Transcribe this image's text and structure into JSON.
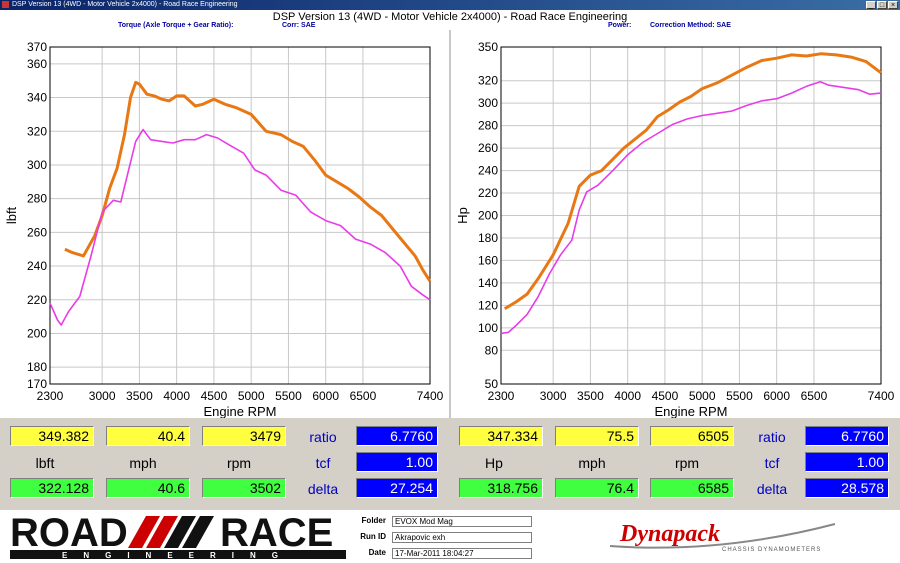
{
  "window": {
    "title": "DSP Version 13 (4WD - Motor Vehicle 2x4000) - Road Race Engineering"
  },
  "header": {
    "main_title": "DSP Version 13 (4WD - Motor Vehicle 2x4000) - Road Race Engineering",
    "left_sub": "Torque (Axle Torque + Gear Ratio):",
    "left_corr": "Corr: SAE",
    "right_sub": "Power:",
    "right_corr": "Correction Method: SAE"
  },
  "colors": {
    "run1": "#e87814",
    "run2": "#e83ce8",
    "panel_yellow": "#ffff40",
    "panel_green": "#40ff40",
    "panel_blue": "#0000ff",
    "label_blue": "#0000c0"
  },
  "chart_data": [
    {
      "type": "line",
      "ylabel": "lbft",
      "xlabel": "Engine RPM",
      "xticks": [
        "2300",
        "3000",
        "3500",
        "4000",
        "4500",
        "5000",
        "5500",
        "6000",
        "6500",
        "7400"
      ],
      "xtick_values": [
        2300,
        3000,
        3500,
        4000,
        4500,
        5000,
        5500,
        6000,
        6500,
        7400
      ],
      "yticks": [
        "370",
        "360",
        "340",
        "320",
        "300",
        "280",
        "260",
        "240",
        "220",
        "200",
        "180",
        "170"
      ],
      "ytick_values": [
        370,
        360,
        340,
        320,
        300,
        280,
        260,
        240,
        220,
        200,
        180,
        170
      ],
      "xlim": [
        2300,
        7400
      ],
      "ylim": [
        170,
        370
      ],
      "grid": true,
      "series": [
        {
          "color": "#e87814",
          "points": [
            [
              2500,
              250
            ],
            [
              2600,
              248
            ],
            [
              2750,
              246
            ],
            [
              2900,
              258
            ],
            [
              3000,
              270
            ],
            [
              3100,
              286
            ],
            [
              3200,
              298
            ],
            [
              3300,
              318
            ],
            [
              3380,
              340
            ],
            [
              3450,
              349
            ],
            [
              3500,
              348
            ],
            [
              3600,
              342
            ],
            [
              3700,
              341
            ],
            [
              3800,
              339
            ],
            [
              3900,
              338
            ],
            [
              4000,
              341
            ],
            [
              4100,
              341
            ],
            [
              4250,
              335
            ],
            [
              4350,
              336
            ],
            [
              4500,
              339
            ],
            [
              4650,
              336
            ],
            [
              4800,
              334
            ],
            [
              5000,
              330
            ],
            [
              5200,
              320
            ],
            [
              5400,
              318
            ],
            [
              5550,
              314
            ],
            [
              5700,
              311
            ],
            [
              5850,
              303
            ],
            [
              6000,
              294
            ],
            [
              6150,
              290
            ],
            [
              6300,
              286
            ],
            [
              6450,
              281
            ],
            [
              6600,
              275
            ],
            [
              6750,
              270
            ],
            [
              6900,
              262
            ],
            [
              7050,
              254
            ],
            [
              7200,
              246
            ],
            [
              7300,
              238
            ],
            [
              7400,
              231
            ]
          ]
        },
        {
          "color": "#e83ce8",
          "points": [
            [
              2300,
              218
            ],
            [
              2400,
              208
            ],
            [
              2450,
              205
            ],
            [
              2550,
              213
            ],
            [
              2700,
              222
            ],
            [
              2850,
              246
            ],
            [
              3000,
              272
            ],
            [
              3150,
              279
            ],
            [
              3250,
              278
            ],
            [
              3350,
              296
            ],
            [
              3450,
              314
            ],
            [
              3550,
              321
            ],
            [
              3650,
              315
            ],
            [
              3800,
              314
            ],
            [
              3950,
              313
            ],
            [
              4100,
              315
            ],
            [
              4250,
              315
            ],
            [
              4400,
              318
            ],
            [
              4550,
              316
            ],
            [
              4700,
              312
            ],
            [
              4900,
              307
            ],
            [
              5050,
              297
            ],
            [
              5200,
              294
            ],
            [
              5400,
              285
            ],
            [
              5600,
              282
            ],
            [
              5800,
              272
            ],
            [
              6000,
              267
            ],
            [
              6200,
              264
            ],
            [
              6400,
              256
            ],
            [
              6600,
              253
            ],
            [
              6800,
              248
            ],
            [
              7000,
              240
            ],
            [
              7150,
              228
            ],
            [
              7300,
              223
            ],
            [
              7400,
              220
            ]
          ]
        }
      ]
    },
    {
      "type": "line",
      "ylabel": "Hp",
      "xlabel": "Engine RPM",
      "xticks": [
        "2300",
        "3000",
        "3500",
        "4000",
        "4500",
        "5000",
        "5500",
        "6000",
        "6500",
        "7400"
      ],
      "xtick_values": [
        2300,
        3000,
        3500,
        4000,
        4500,
        5000,
        5500,
        6000,
        6500,
        7400
      ],
      "yticks": [
        "350",
        "320",
        "300",
        "280",
        "260",
        "240",
        "220",
        "200",
        "180",
        "160",
        "140",
        "120",
        "100",
        "80",
        "50"
      ],
      "ytick_values": [
        350,
        320,
        300,
        280,
        260,
        240,
        220,
        200,
        180,
        160,
        140,
        120,
        100,
        80,
        50
      ],
      "xlim": [
        2300,
        7400
      ],
      "ylim": [
        50,
        350
      ],
      "grid": true,
      "series": [
        {
          "color": "#e87814",
          "points": [
            [
              2350,
              117
            ],
            [
              2500,
              123
            ],
            [
              2650,
              130
            ],
            [
              2800,
              144
            ],
            [
              3000,
              165
            ],
            [
              3200,
              193
            ],
            [
              3350,
              226
            ],
            [
              3500,
              236
            ],
            [
              3650,
              240
            ],
            [
              3800,
              250
            ],
            [
              3950,
              260
            ],
            [
              4100,
              268
            ],
            [
              4250,
              276
            ],
            [
              4400,
              288
            ],
            [
              4550,
              294
            ],
            [
              4700,
              301
            ],
            [
              4850,
              306
            ],
            [
              5000,
              313
            ],
            [
              5200,
              318
            ],
            [
              5400,
              325
            ],
            [
              5600,
              332
            ],
            [
              5800,
              338
            ],
            [
              6000,
              340
            ],
            [
              6200,
              343
            ],
            [
              6400,
              342
            ],
            [
              6600,
              344
            ],
            [
              6800,
              343
            ],
            [
              7000,
              341
            ],
            [
              7200,
              337
            ],
            [
              7300,
              332
            ],
            [
              7400,
              327
            ]
          ]
        },
        {
          "color": "#e83ce8",
          "points": [
            [
              2300,
              95
            ],
            [
              2400,
              96
            ],
            [
              2500,
              102
            ],
            [
              2650,
              112
            ],
            [
              2800,
              128
            ],
            [
              2950,
              148
            ],
            [
              3100,
              165
            ],
            [
              3250,
              178
            ],
            [
              3350,
              205
            ],
            [
              3450,
              221
            ],
            [
              3600,
              227
            ],
            [
              3800,
              240
            ],
            [
              4000,
              254
            ],
            [
              4200,
              265
            ],
            [
              4400,
              273
            ],
            [
              4600,
              281
            ],
            [
              4800,
              286
            ],
            [
              5000,
              289
            ],
            [
              5200,
              291
            ],
            [
              5400,
              293
            ],
            [
              5600,
              298
            ],
            [
              5800,
              302
            ],
            [
              6000,
              304
            ],
            [
              6200,
              309
            ],
            [
              6400,
              315
            ],
            [
              6585,
              319
            ],
            [
              6700,
              316
            ],
            [
              6900,
              314
            ],
            [
              7100,
              312
            ],
            [
              7250,
              308
            ],
            [
              7400,
              309
            ]
          ]
        }
      ]
    }
  ],
  "left_panel": {
    "row1": [
      "349.382",
      "40.4",
      "3479"
    ],
    "labels": [
      "lbft",
      "mph",
      "rpm"
    ],
    "row3": [
      "322.128",
      "40.6",
      "3502"
    ],
    "side_labels": [
      "ratio",
      "tcf",
      "delta"
    ],
    "side_values": [
      "6.7760",
      "1.00",
      "27.254"
    ]
  },
  "right_panel": {
    "row1": [
      "347.334",
      "75.5",
      "6505"
    ],
    "labels": [
      "Hp",
      "mph",
      "rpm"
    ],
    "row3": [
      "318.756",
      "76.4",
      "6585"
    ],
    "side_labels": [
      "ratio",
      "tcf",
      "delta"
    ],
    "side_values": [
      "6.7760",
      "1.00",
      "28.578"
    ]
  },
  "footer": {
    "logo_word1": "ROAD",
    "logo_word2": "RACE",
    "logo_sub": "ENGINEERING",
    "folder_label": "Folder",
    "folder_value": "EVOX Mod Mag",
    "runid_label": "Run ID",
    "runid_value": "Akrapovic exh",
    "date_label": "Date",
    "date_value": "17-Mar-2011 18:04:27",
    "dyna_logo": "Dynapack",
    "dyna_sub": "CHASSIS DYNAMOMETERS"
  }
}
